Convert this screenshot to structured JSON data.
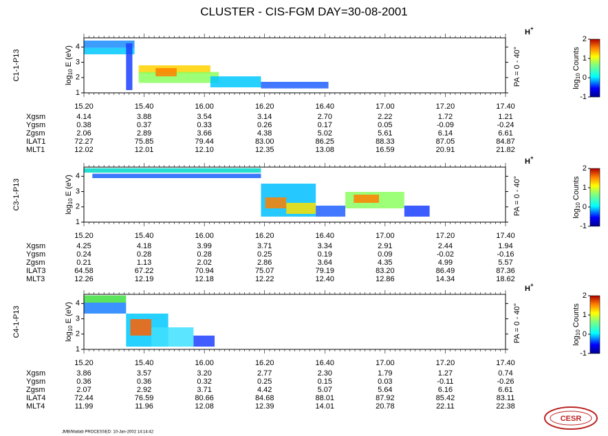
{
  "title": "CLUSTER - CIS-FGM DAY=30-08-2001",
  "footer": "JMB/Matlab PROCESSED: 10-Jan-2002 14:14:42",
  "logo": "CESR",
  "chart_data": [
    {
      "type": "spectrogram",
      "panel_label": "C1-1-P13",
      "y_label": {
        "base": "log",
        "sub": "10",
        "rest": " E (eV)"
      },
      "species": {
        "base": "H",
        "sup": "+"
      },
      "pitch_angle": "PA = 0 - 40°",
      "ylim": [
        1,
        4.6
      ],
      "yticks": [
        1,
        2,
        3,
        4
      ],
      "x_tick_labels": [
        "15.20",
        "15.40",
        "16.00",
        "16.20",
        "16.40",
        "17.00",
        "17.20",
        "17.40"
      ],
      "colorbar": {
        "label": {
          "base": "log",
          "sub": "10",
          "rest": " Counts"
        },
        "clim": [
          -1,
          2
        ],
        "ticks": [
          -1,
          0,
          1,
          2
        ]
      },
      "ephemeris": [
        {
          "name": "Xgsm",
          "values": [
            "4.14",
            "3.88",
            "3.54",
            "3.14",
            "2.70",
            "2.22",
            "1.72",
            "1.21"
          ]
        },
        {
          "name": "Ygsm",
          "values": [
            "0.38",
            "0.37",
            "0.33",
            "0.26",
            "0.17",
            "0.05",
            "-0.09",
            "-0.24"
          ]
        },
        {
          "name": "Zgsm",
          "values": [
            "2.06",
            "2.89",
            "3.66",
            "4.38",
            "5.02",
            "5.61",
            "6.14",
            "6.61"
          ]
        },
        {
          "name": "ILAT1",
          "values": [
            "72.27",
            "75.85",
            "79.44",
            "83.00",
            "86.25",
            "88.33",
            "87.05",
            "84.87"
          ]
        },
        {
          "name": "MLT1",
          "values": [
            "12.02",
            "12.01",
            "12.10",
            "12.35",
            "13.08",
            "16.59",
            "20.91",
            "21.82"
          ]
        }
      ]
    },
    {
      "type": "spectrogram",
      "panel_label": "C3-1-P13",
      "y_label": {
        "base": "log",
        "sub": "10",
        "rest": " E (eV)"
      },
      "species": {
        "base": "H",
        "sup": "+"
      },
      "pitch_angle": "PA = 0 - 40°",
      "ylim": [
        1,
        4.6
      ],
      "yticks": [
        1,
        2,
        3,
        4
      ],
      "x_tick_labels": [
        "15.20",
        "15.40",
        "16.00",
        "16.20",
        "16.40",
        "17.00",
        "17.20",
        "17.40"
      ],
      "colorbar": {
        "label": {
          "base": "log",
          "sub": "10",
          "rest": " Counts"
        },
        "clim": [
          -1,
          2
        ],
        "ticks": [
          -1,
          0,
          1,
          2
        ]
      },
      "ephemeris": [
        {
          "name": "Xgsm",
          "values": [
            "4.25",
            "4.18",
            "3.99",
            "3.71",
            "3.34",
            "2.91",
            "2.44",
            "1.94"
          ]
        },
        {
          "name": "Ygsm",
          "values": [
            "0.24",
            "0.28",
            "0.28",
            "0.25",
            "0.19",
            "0.09",
            "-0.02",
            "-0.16"
          ]
        },
        {
          "name": "Zgsm",
          "values": [
            "0.21",
            "1.13",
            "2.02",
            "2.86",
            "3.64",
            "4.35",
            "4.99",
            "5.57"
          ]
        },
        {
          "name": "ILAT3",
          "values": [
            "64.58",
            "67.22",
            "70.94",
            "75.07",
            "79.19",
            "83.20",
            "86.49",
            "87.36"
          ]
        },
        {
          "name": "MLT3",
          "values": [
            "12.26",
            "12.19",
            "12.18",
            "12.22",
            "12.40",
            "12.86",
            "14.34",
            "18.62"
          ]
        }
      ]
    },
    {
      "type": "spectrogram",
      "panel_label": "C4-1-P13",
      "y_label": {
        "base": "log",
        "sub": "10",
        "rest": " E (eV)"
      },
      "species": {
        "base": "H",
        "sup": "+"
      },
      "pitch_angle": "PA = 0 - 40°",
      "ylim": [
        1,
        4.6
      ],
      "yticks": [
        1,
        2,
        3,
        4
      ],
      "x_tick_labels": [
        "15.20",
        "15.40",
        "16.00",
        "16.20",
        "16.40",
        "17.00",
        "17.20",
        "17.40"
      ],
      "colorbar": {
        "label": {
          "base": "log",
          "sub": "10",
          "rest": " Counts"
        },
        "clim": [
          -1,
          2
        ],
        "ticks": [
          -1,
          0,
          1,
          2
        ]
      },
      "ephemeris": [
        {
          "name": "Xgsm",
          "values": [
            "3.86",
            "3.57",
            "3.20",
            "2.77",
            "2.30",
            "1.79",
            "1.27",
            "0.74"
          ]
        },
        {
          "name": "Ygsm",
          "values": [
            "0.36",
            "0.36",
            "0.32",
            "0.25",
            "0.15",
            "0.03",
            "-0.11",
            "-0.26"
          ]
        },
        {
          "name": "Zgsm",
          "values": [
            "2.07",
            "2.92",
            "3.71",
            "4.42",
            "5.07",
            "5.64",
            "6.16",
            "6.61"
          ]
        },
        {
          "name": "ILAT4",
          "values": [
            "72.44",
            "76.59",
            "80.66",
            "84.68",
            "88.01",
            "87.92",
            "85.42",
            "83.11"
          ]
        },
        {
          "name": "MLT4",
          "values": [
            "11.99",
            "11.96",
            "12.08",
            "12.39",
            "14.01",
            "20.78",
            "22.11",
            "22.38"
          ]
        }
      ]
    }
  ]
}
